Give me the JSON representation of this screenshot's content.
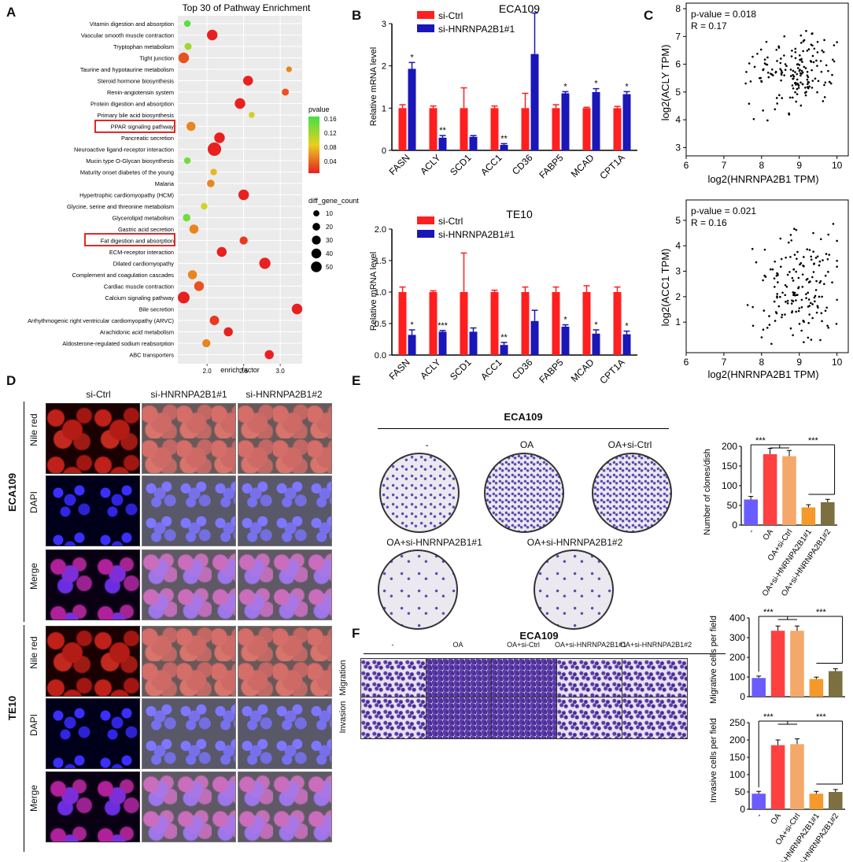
{
  "letters": {
    "A": "A",
    "B": "B",
    "C": "C",
    "D": "D",
    "E": "E",
    "F": "F"
  },
  "panelA": {
    "title": "Top 30 of Pathway Enrichment",
    "xlabel": "enrich factor",
    "xticks": [
      "2.0",
      "2.5",
      "3.0"
    ],
    "legend_pvalue_title": "pvalue",
    "legend_pvalue_ticks": [
      "0.16",
      "0.12",
      "0.08",
      "0.04"
    ],
    "legend_size_title": "diff_gene_count",
    "legend_size_ticks": [
      "10",
      "20",
      "30",
      "40",
      "50"
    ],
    "highlighted": [
      "PPAR signaling pathway",
      "Fat digestion and absorption"
    ]
  },
  "chart_data": [
    {
      "type": "scatter",
      "title": "Top 30 of Pathway Enrichment",
      "xlabel": "enrich factor",
      "ylabel": "",
      "xlim": [
        1.6,
        3.3
      ],
      "color_scale": {
        "label": "pvalue",
        "low": "#e82020",
        "high": "#44e044",
        "range": [
          0.02,
          0.16
        ]
      },
      "points": [
        {
          "pathway": "Vitamin digestion and absorption",
          "x": 1.73,
          "size": 8,
          "pvalue": 0.15
        },
        {
          "pathway": "Vascular smooth muscle contraction",
          "x": 2.07,
          "size": 30,
          "pvalue": 0.02
        },
        {
          "pathway": "Tryptophan metabolism",
          "x": 1.74,
          "size": 10,
          "pvalue": 0.12
        },
        {
          "pathway": "Tight junction",
          "x": 1.68,
          "size": 30,
          "pvalue": 0.04
        },
        {
          "pathway": "Taurine and hypotaurine metabolism",
          "x": 3.12,
          "size": 5,
          "pvalue": 0.06
        },
        {
          "pathway": "Steroid hormone biosynthesis",
          "x": 2.56,
          "size": 25,
          "pvalue": 0.02
        },
        {
          "pathway": "Renin-angiotensin system",
          "x": 3.07,
          "size": 10,
          "pvalue": 0.04
        },
        {
          "pathway": "Protein digestion and absorption",
          "x": 2.45,
          "size": 30,
          "pvalue": 0.02
        },
        {
          "pathway": "Primary bile acid biosynthesis",
          "x": 2.61,
          "size": 6,
          "pvalue": 0.1
        },
        {
          "pathway": "PPAR signaling pathway",
          "x": 1.78,
          "size": 20,
          "pvalue": 0.06
        },
        {
          "pathway": "Pancreatic secretion",
          "x": 2.17,
          "size": 30,
          "pvalue": 0.02
        },
        {
          "pathway": "Neuroactive ligand-receptor interaction",
          "x": 2.1,
          "size": 55,
          "pvalue": 0.01
        },
        {
          "pathway": "Mucin type O-Glycan biosynthesis",
          "x": 1.73,
          "size": 8,
          "pvalue": 0.14
        },
        {
          "pathway": "Maturity onset diabetes of the young",
          "x": 2.09,
          "size": 8,
          "pvalue": 0.08
        },
        {
          "pathway": "Malaria",
          "x": 2.05,
          "size": 12,
          "pvalue": 0.06
        },
        {
          "pathway": "Hypertrophic cardiomyopathy (HCM)",
          "x": 2.5,
          "size": 30,
          "pvalue": 0.02
        },
        {
          "pathway": "Glycine, serine and threonine metabolism",
          "x": 1.96,
          "size": 8,
          "pvalue": 0.1
        },
        {
          "pathway": "Glycerolipid metabolism",
          "x": 1.72,
          "size": 12,
          "pvalue": 0.14
        },
        {
          "pathway": "Gastric acid secretion",
          "x": 1.82,
          "size": 20,
          "pvalue": 0.06
        },
        {
          "pathway": "Fat digestion and absorption",
          "x": 2.5,
          "size": 15,
          "pvalue": 0.03
        },
        {
          "pathway": "ECM-receptor interaction",
          "x": 2.2,
          "size": 25,
          "pvalue": 0.02
        },
        {
          "pathway": "Dilated cardiomyopathy",
          "x": 2.79,
          "size": 35,
          "pvalue": 0.01
        },
        {
          "pathway": "Complement and coagulation cascades",
          "x": 1.8,
          "size": 20,
          "pvalue": 0.06
        },
        {
          "pathway": "Cardiac muscle contraction",
          "x": 1.89,
          "size": 25,
          "pvalue": 0.04
        },
        {
          "pathway": "Calcium signaling pathway",
          "x": 1.68,
          "size": 40,
          "pvalue": 0.02
        },
        {
          "pathway": "Bile secretion",
          "x": 3.23,
          "size": 30,
          "pvalue": 0.01
        },
        {
          "pathway": "Arrhythmogenic right ventricular cardiomyopathy (ARVC)",
          "x": 2.1,
          "size": 22,
          "pvalue": 0.03
        },
        {
          "pathway": "Arachidonic acid metabolism",
          "x": 2.29,
          "size": 20,
          "pvalue": 0.02
        },
        {
          "pathway": "Aldosterone-regulated sodium reabsorption",
          "x": 1.99,
          "size": 15,
          "pvalue": 0.06
        },
        {
          "pathway": "ABC transporters",
          "x": 2.85,
          "size": 20,
          "pvalue": 0.02
        }
      ]
    },
    {
      "type": "bar",
      "title": "ECA109",
      "ylabel": "Relative mRNA level",
      "ylim": [
        0,
        3
      ],
      "yticks": [
        "0",
        "1",
        "2",
        "3"
      ],
      "categories": [
        "FASN",
        "ACLY",
        "SCD1",
        "ACC1",
        "CD36",
        "FABP5",
        "MCAD",
        "CPT1A"
      ],
      "series": [
        {
          "name": "si-Ctrl",
          "color": "#ff1f1f",
          "values": [
            1.0,
            1.0,
            1.0,
            1.0,
            1.0,
            1.0,
            1.0,
            1.0
          ],
          "err": [
            0.08,
            0.05,
            0.48,
            0.05,
            0.35,
            0.08,
            0.02,
            0.04
          ]
        },
        {
          "name": "si-HNRNPA2B1#1",
          "color": "#1a16b8",
          "values": [
            1.93,
            0.3,
            0.32,
            0.13,
            2.28,
            1.35,
            1.38,
            1.33
          ],
          "err": [
            0.15,
            0.05,
            0.03,
            0.03,
            0.97,
            0.04,
            0.08,
            0.06
          ]
        }
      ],
      "annotations": [
        "*",
        "**",
        "",
        "**",
        "",
        "*",
        "*",
        "*"
      ]
    },
    {
      "type": "bar",
      "title": "TE10",
      "ylabel": "Relative mRNA level",
      "ylim": [
        0,
        2
      ],
      "yticks": [
        "0.0",
        "0.5",
        "1.0",
        "1.5",
        "2.0"
      ],
      "categories": [
        "FASN",
        "ACLY",
        "SCD1",
        "ACC1",
        "CD36",
        "FABP5",
        "MCAD",
        "CPT1A"
      ],
      "series": [
        {
          "name": "si-Ctrl",
          "color": "#ff1f1f",
          "values": [
            1.0,
            1.0,
            1.0,
            1.0,
            1.0,
            1.0,
            1.0,
            1.0
          ],
          "err": [
            0.08,
            0.02,
            0.62,
            0.03,
            0.08,
            0.08,
            0.1,
            0.08
          ]
        },
        {
          "name": "si-HNRNPA2B1#1",
          "color": "#1a16b8",
          "values": [
            0.32,
            0.37,
            0.37,
            0.16,
            0.54,
            0.45,
            0.34,
            0.33
          ],
          "err": [
            0.08,
            0.02,
            0.06,
            0.04,
            0.17,
            0.03,
            0.06,
            0.05
          ]
        }
      ],
      "annotations": [
        "*",
        "***",
        "",
        "**",
        "",
        "*",
        "*",
        "*"
      ]
    },
    {
      "type": "scatter",
      "title": "",
      "xlabel": "log2(HNRNPA2B1 TPM)",
      "ylabel": "log2(ACLY TPM)",
      "xlim": [
        6,
        10.3
      ],
      "ylim": [
        2.7,
        8.2
      ],
      "xticks": [
        "6",
        "7",
        "8",
        "9",
        "10"
      ],
      "yticks": [
        "3",
        "4",
        "5",
        "6",
        "7",
        "8"
      ],
      "stats": [
        "p-value = 0.018",
        "R = 0.17"
      ]
    },
    {
      "type": "scatter",
      "title": "",
      "xlabel": "log2(HNRNPA2B1 TPM)",
      "ylabel": "log2(ACC1 TPM)",
      "xlim": [
        6,
        10.3
      ],
      "ylim": [
        -0.2,
        5.8
      ],
      "xticks": [
        "6",
        "7",
        "8",
        "9",
        "10"
      ],
      "yticks": [
        "1",
        "2",
        "3",
        "4",
        "5"
      ],
      "stats": [
        "p-value = 0.021",
        "R = 0.16"
      ]
    },
    {
      "type": "bar",
      "title": "",
      "ylabel": "Number of clones/dish",
      "ylim": [
        0,
        200
      ],
      "yticks": [
        "0",
        "50",
        "100",
        "150",
        "200"
      ],
      "categories": [
        "-",
        "OA",
        "OA+si-Ctrl",
        "OA+si-HNRNPA2B1#1",
        "OA+si-HNRNPA2B1#2"
      ],
      "values": [
        65,
        180,
        175,
        45,
        58
      ],
      "colors": [
        "#6a5cff",
        "#ff4040",
        "#f4a96a",
        "#f59a2a",
        "#7c7040"
      ],
      "significance": [
        "***",
        "***"
      ]
    },
    {
      "type": "bar",
      "title": "",
      "ylabel": "Migrative cells per field",
      "ylim": [
        0,
        400
      ],
      "yticks": [
        "0",
        "100",
        "200",
        "300",
        "400"
      ],
      "categories": [
        "-",
        "OA",
        "OA+si-Ctrl",
        "OA+si-HNRNPA2B1#1",
        "OA+si-HNRNPA2B1#2"
      ],
      "values": [
        95,
        335,
        335,
        90,
        130
      ],
      "colors": [
        "#6a5cff",
        "#ff4040",
        "#f4a96a",
        "#f59a2a",
        "#7c7040"
      ],
      "significance": [
        "***",
        "***"
      ]
    },
    {
      "type": "bar",
      "title": "",
      "ylabel": "Invasive cells per field",
      "ylim": [
        0,
        250
      ],
      "yticks": [
        "0",
        "50",
        "100",
        "150",
        "200",
        "250"
      ],
      "categories": [
        "-",
        "OA",
        "OA+si-Ctrl",
        "OA+si-HNRNPA2B1#1",
        "OA+si-HNRNPA2B1#2"
      ],
      "values": [
        45,
        185,
        188,
        45,
        50
      ],
      "colors": [
        "#6a5cff",
        "#ff4040",
        "#f4a96a",
        "#f59a2a",
        "#7c7040"
      ],
      "significance": [
        "***",
        "***"
      ]
    }
  ],
  "panelD": {
    "columns": [
      "si-Ctrl",
      "si-HNRNPA2B1#1",
      "si-HNRNPA2B1#2"
    ],
    "cell_lines": [
      "ECA109",
      "TE10"
    ],
    "rows": [
      "Nile red",
      "DAPI",
      "Merge"
    ]
  },
  "panelE": {
    "title": "ECA109",
    "dishes": [
      "-",
      "OA",
      "OA+si-Ctrl",
      "OA+si-HNRNPA2B1#1",
      "OA+si-HNRNPA2B1#2"
    ]
  },
  "panelF": {
    "title": "ECA109",
    "columns": [
      "-",
      "OA",
      "OA+si-Ctrl",
      "OA+si-HNRNPA2B1#1",
      "OA+si-HNRNPA2B1#2"
    ],
    "rows": [
      "Migration",
      "Invasion"
    ]
  }
}
